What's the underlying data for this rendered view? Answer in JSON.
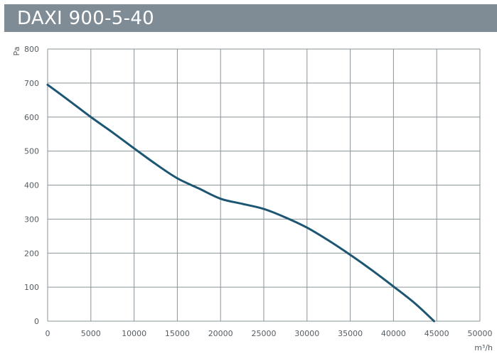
{
  "header": {
    "title": "DAXI 900-5-40"
  },
  "chart_data": {
    "type": "line",
    "title": "DAXI 900-5-40",
    "xlabel": "m³/h",
    "ylabel": "Pa",
    "xlim": [
      0,
      50000
    ],
    "ylim": [
      0,
      800
    ],
    "xticks": [
      0,
      5000,
      10000,
      15000,
      20000,
      25000,
      30000,
      35000,
      40000,
      45000,
      50000
    ],
    "yticks": [
      0,
      100,
      200,
      300,
      400,
      500,
      600,
      700,
      800
    ],
    "grid": true,
    "colors": {
      "line": "#1d5673",
      "grid": "#8a9499",
      "title_bar": "#7f8c96"
    },
    "series": [
      {
        "x": [
          0,
          2500,
          5000,
          7500,
          10000,
          12500,
          15000,
          17500,
          20000,
          22500,
          25000,
          27500,
          30000,
          32500,
          35000,
          37500,
          40000,
          42500,
          44700
        ],
        "values": [
          695,
          648,
          600,
          555,
          508,
          462,
          420,
          390,
          360,
          345,
          330,
          305,
          275,
          237,
          195,
          150,
          102,
          52,
          0
        ]
      }
    ]
  }
}
